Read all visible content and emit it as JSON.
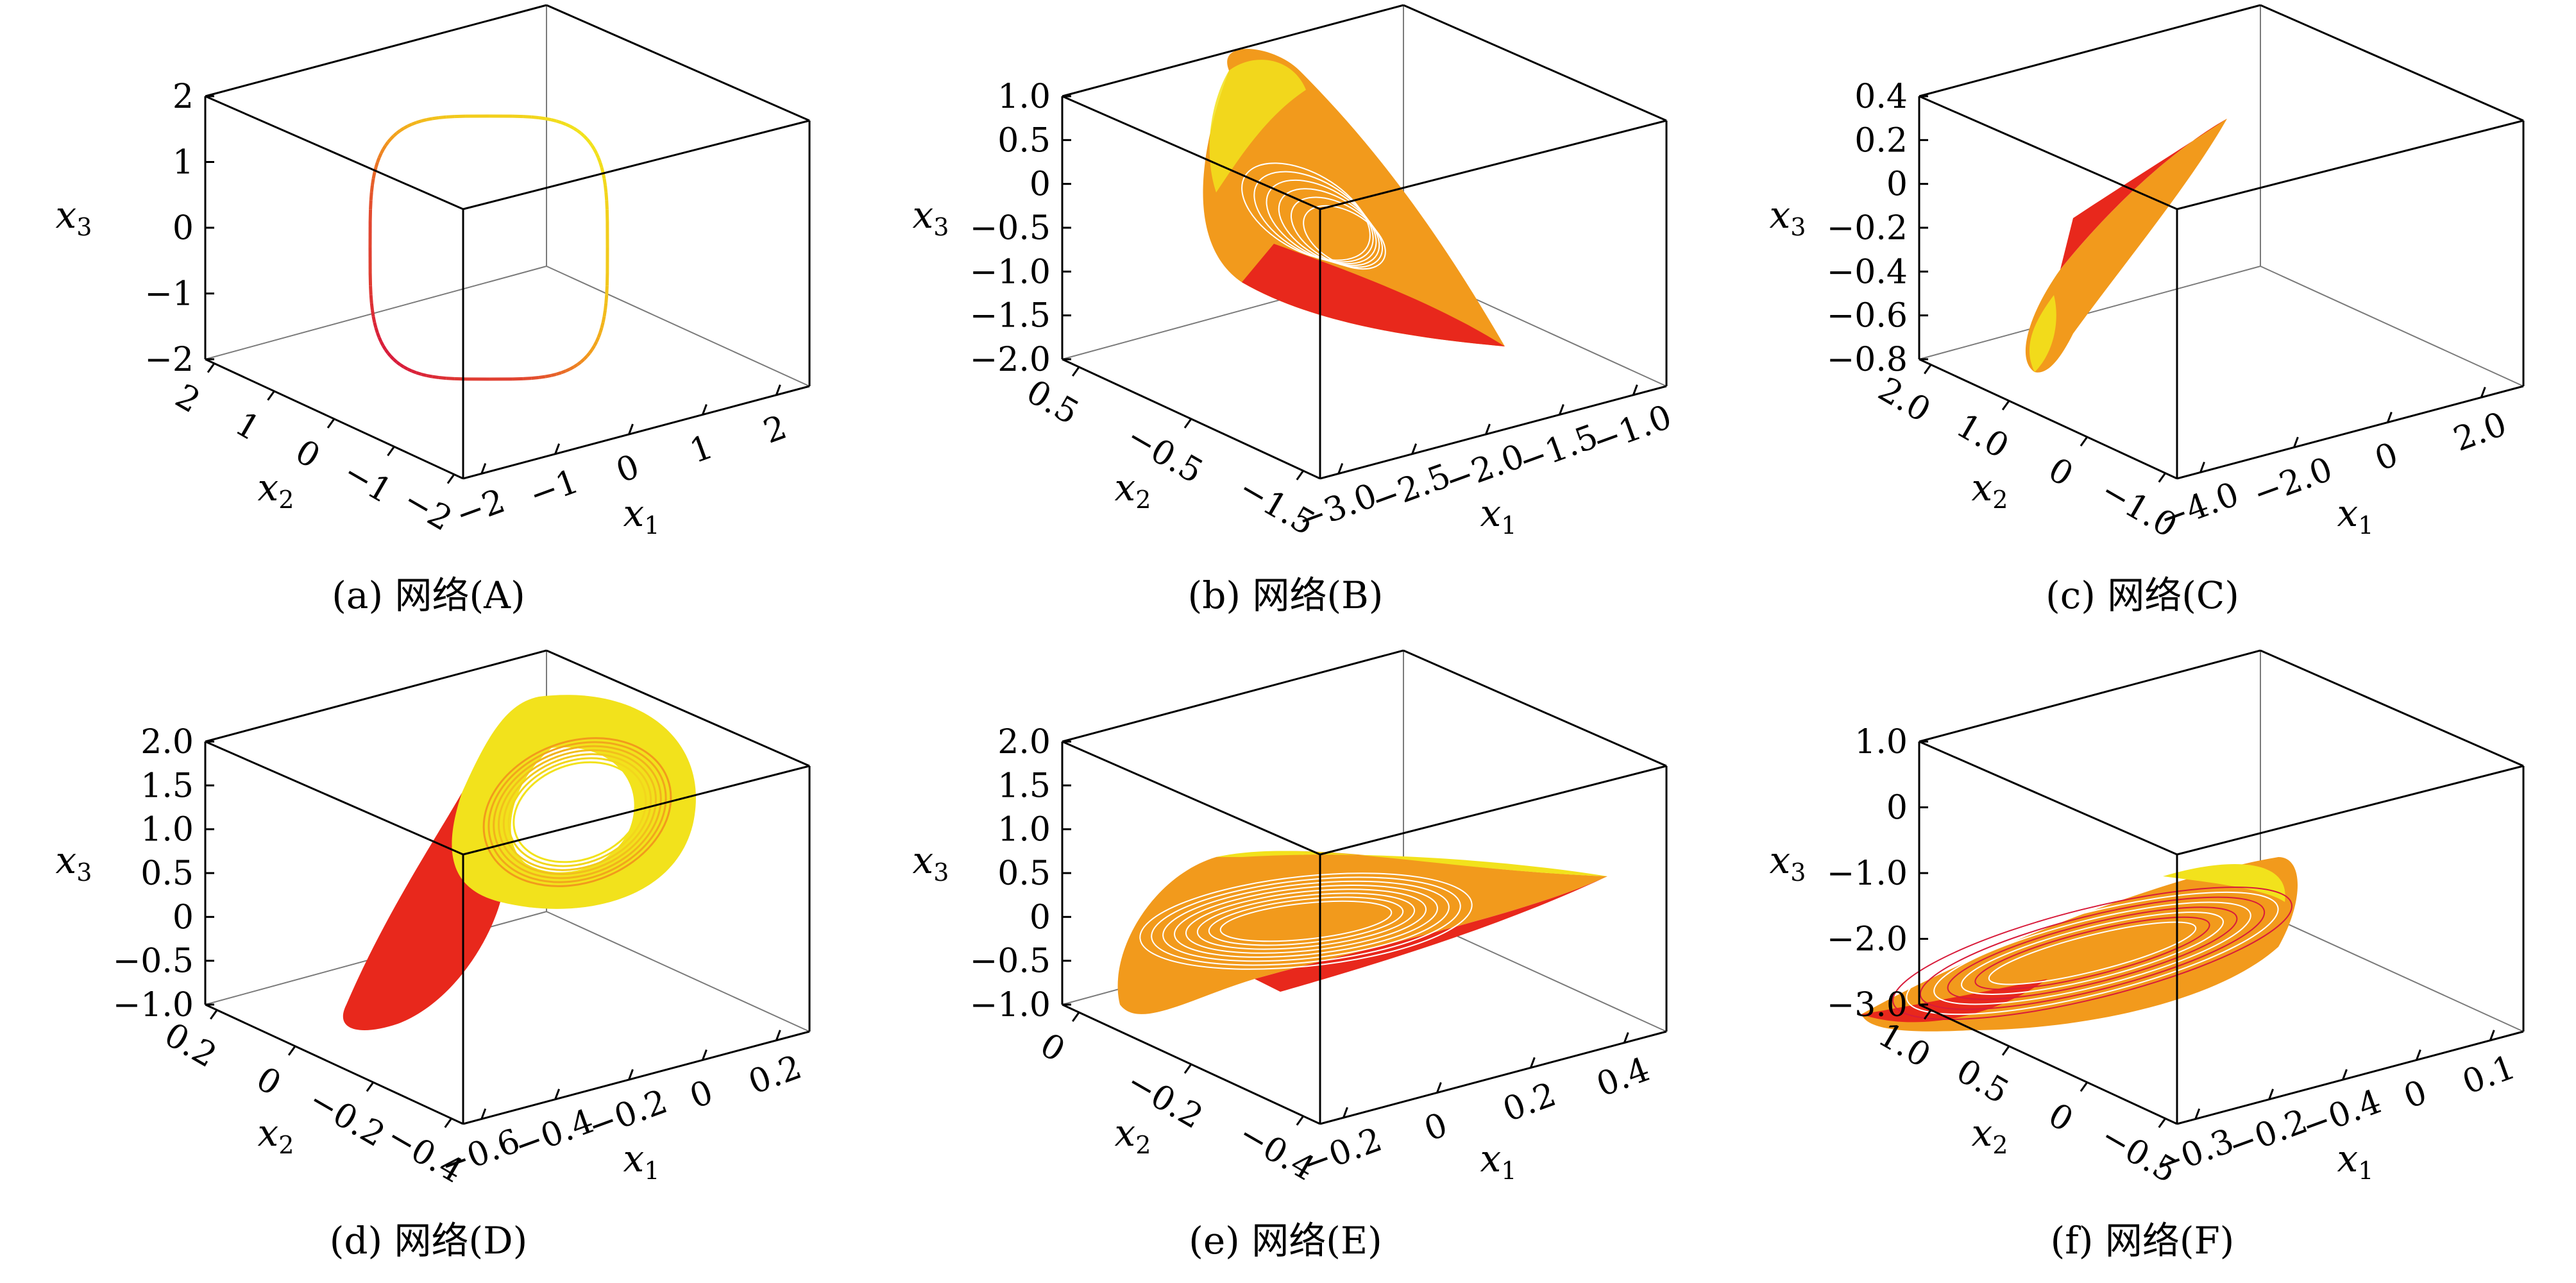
{
  "figure": {
    "panels": [
      {
        "id": "A",
        "caption": "(a) 网络(A)",
        "x1_ticks": [
          "−2",
          "−1",
          "0",
          "1",
          "2"
        ],
        "x2_ticks": [
          "2",
          "1",
          "0",
          "−1",
          "−2"
        ],
        "x3_ticks": [
          "2",
          "1",
          "0",
          "−1",
          "−2"
        ]
      },
      {
        "id": "B",
        "caption": "(b) 网络(B)",
        "x1_ticks": [
          "−3.0",
          "−2.5",
          "−2.0",
          "−1.5",
          "−1.0"
        ],
        "x2_ticks": [
          "0.5",
          "−0.5",
          "−1.5"
        ],
        "x3_ticks": [
          "1.0",
          "0.5",
          "0",
          "−0.5",
          "−1.0",
          "−1.5",
          "−2.0"
        ]
      },
      {
        "id": "C",
        "caption": "(c) 网络(C)",
        "x1_ticks": [
          "−4.0",
          "−2.0",
          "0",
          "2.0"
        ],
        "x2_ticks": [
          "2.0",
          "1.0",
          "0",
          "−1.0"
        ],
        "x3_ticks": [
          "0.4",
          "0.2",
          "0",
          "−0.2",
          "−0.4",
          "−0.6",
          "−0.8"
        ]
      },
      {
        "id": "D",
        "caption": "(d) 网络(D)",
        "x1_ticks": [
          "−0.6",
          "−0.4",
          "−0.2",
          "0",
          "0.2"
        ],
        "x2_ticks": [
          "0.2",
          "0",
          "−0.2",
          "−0.4"
        ],
        "x3_ticks": [
          "2.0",
          "1.5",
          "1.0",
          "0.5",
          "0",
          "−0.5",
          "−1.0"
        ]
      },
      {
        "id": "E",
        "caption": "(e) 网络(E)",
        "x1_ticks": [
          "−0.2",
          "0",
          "0.2",
          "0.4"
        ],
        "x2_ticks": [
          "0",
          "−0.2",
          "−0.4"
        ],
        "x3_ticks": [
          "2.0",
          "1.5",
          "1.0",
          "0.5",
          "0",
          "−0.5",
          "−1.0"
        ]
      },
      {
        "id": "F",
        "caption": "(f) 网络(F)",
        "x1_ticks": [
          "−0.3",
          "−0.2",
          "−0.4",
          "0",
          "0.1"
        ],
        "x2_ticks": [
          "1.0",
          "0.5",
          "0",
          "−0.5"
        ],
        "x3_ticks": [
          "1.0",
          "0",
          "−1.0",
          "−2.0",
          "−3.0"
        ]
      }
    ],
    "axis_labels": {
      "x1": "x",
      "x1_sub": "1",
      "x2": "x",
      "x2_sub": "2",
      "x3": "x",
      "x3_sub": "3"
    },
    "colors": {
      "yellow": "#f2e21c",
      "orange": "#f29a1c",
      "red": "#e8281c",
      "crimson": "#d81b3a",
      "axis": "#000000",
      "inner": "#7a7a7a"
    }
  },
  "chart_data": [
    {
      "type": "scatter",
      "subtype": "3d-trajectory",
      "title": "(a) 网络(A)",
      "xlabel": "x1",
      "ylabel": "x2",
      "zlabel": "x3",
      "xlim": [
        -2,
        2
      ],
      "ylim": [
        -2,
        2
      ],
      "zlim": [
        -2,
        2
      ],
      "attractor": "limit-cycle"
    },
    {
      "type": "scatter",
      "subtype": "3d-trajectory",
      "title": "(b) 网络(B)",
      "xlabel": "x1",
      "ylabel": "x2",
      "zlabel": "x3",
      "xlim": [
        -3.0,
        -1.0
      ],
      "ylim": [
        -1.5,
        0.5
      ],
      "zlim": [
        -2.0,
        1.0
      ],
      "attractor": "chaotic"
    },
    {
      "type": "scatter",
      "subtype": "3d-trajectory",
      "title": "(c) 网络(C)",
      "xlabel": "x1",
      "ylabel": "x2",
      "zlabel": "x3",
      "xlim": [
        -4.0,
        2.0
      ],
      "ylim": [
        -1.0,
        2.0
      ],
      "zlim": [
        -0.8,
        0.4
      ],
      "attractor": "chaotic"
    },
    {
      "type": "scatter",
      "subtype": "3d-trajectory",
      "title": "(d) 网络(D)",
      "xlabel": "x1",
      "ylabel": "x2",
      "zlabel": "x3",
      "xlim": [
        -0.6,
        0.2
      ],
      "ylim": [
        -0.4,
        0.2
      ],
      "zlim": [
        -1.0,
        2.0
      ],
      "attractor": "chaotic"
    },
    {
      "type": "scatter",
      "subtype": "3d-trajectory",
      "title": "(e) 网络(E)",
      "xlabel": "x1",
      "ylabel": "x2",
      "zlabel": "x3",
      "xlim": [
        -0.2,
        0.4
      ],
      "ylim": [
        -0.4,
        0
      ],
      "zlim": [
        -1.0,
        2.0
      ],
      "attractor": "chaotic"
    },
    {
      "type": "scatter",
      "subtype": "3d-trajectory",
      "title": "(f) 网络(F)",
      "xlabel": "x1",
      "ylabel": "x2",
      "zlabel": "x3",
      "xlim": [
        -0.3,
        0.1
      ],
      "ylim": [
        -0.5,
        1.0
      ],
      "zlim": [
        -3.0,
        1.0
      ],
      "attractor": "chaotic"
    }
  ]
}
